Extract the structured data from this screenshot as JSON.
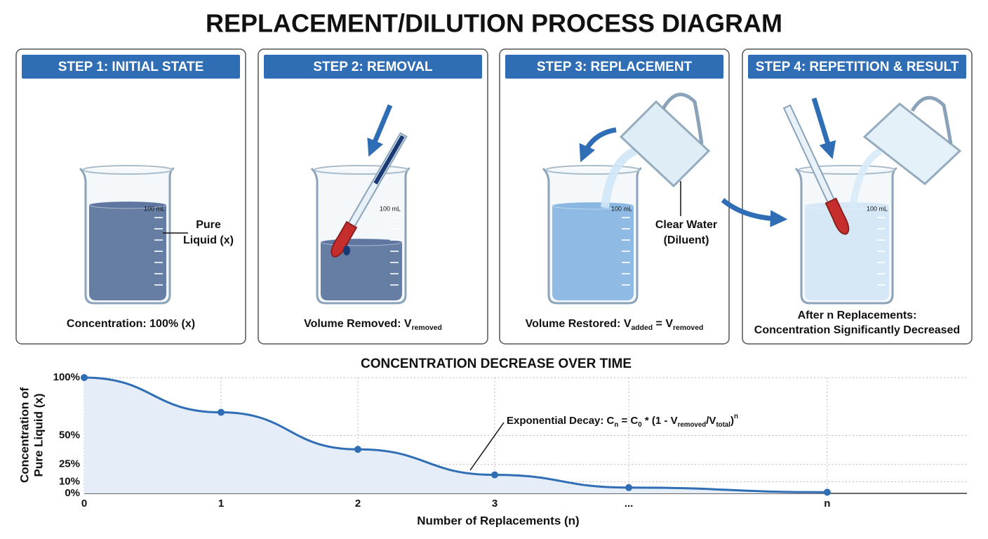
{
  "title": "REPLACEMENT/DILUTION PROCESS DIAGRAM",
  "panels": [
    {
      "header": "STEP 1: INITIAL STATE",
      "beaker_mark": "100 mL",
      "label": [
        "Pure",
        "Liquid (x)"
      ],
      "caption": [
        [
          {
            "text": "Concentration: 100% (x)"
          }
        ]
      ]
    },
    {
      "header": "STEP 2: REMOVAL",
      "beaker_mark": "100 mL",
      "label": [],
      "caption": [
        [
          {
            "text": "Volume Removed: V"
          },
          {
            "sub": "removed"
          }
        ]
      ]
    },
    {
      "header": "STEP 3: REPLACEMENT",
      "beaker_mark": "100 mL",
      "label": [
        "Clear Water",
        "(Diluent)"
      ],
      "caption": [
        [
          {
            "text": "Volume Restored: V"
          },
          {
            "sub": "added"
          },
          {
            "text": " = V"
          },
          {
            "sub": "removed"
          }
        ]
      ]
    },
    {
      "header": "STEP 4: REPETITION & RESULT",
      "beaker_mark": "100 mL",
      "label": [],
      "caption": [
        [
          {
            "text": "After n Replacements:"
          }
        ],
        [
          {
            "text": "Concentration Significantly Decreased"
          }
        ]
      ]
    }
  ],
  "chart_data": {
    "type": "line",
    "title": "CONCENTRATION DECREASE OVER TIME",
    "x_label": "Number of Replacements (n)",
    "y_label": [
      "Concentration of",
      "Pure Liquid (x)"
    ],
    "categories": [
      "0",
      "1",
      "2",
      "3",
      "...",
      "n"
    ],
    "values": [
      100,
      70,
      38,
      16,
      5,
      1
    ],
    "color": "#2f6db5",
    "area_color": "#e4edf8",
    "grid": true,
    "ylim": [
      0,
      100
    ],
    "yticks": [
      {
        "value": 0,
        "label": "0%"
      },
      {
        "value": 10,
        "label": "10%"
      },
      {
        "value": 25,
        "label": "25%"
      },
      {
        "value": 50,
        "label": "50%"
      },
      {
        "value": 100,
        "label": "100%"
      }
    ],
    "annotation": [
      {
        "text": "Exponential Decay: C"
      },
      {
        "sub": "n"
      },
      {
        "text": " = C"
      },
      {
        "sub": "0"
      },
      {
        "text": " * (1 - V"
      },
      {
        "sub": "removed"
      },
      {
        "text": "/V"
      },
      {
        "sub": "total"
      },
      {
        "text": ")"
      },
      {
        "sup": "n"
      }
    ]
  }
}
